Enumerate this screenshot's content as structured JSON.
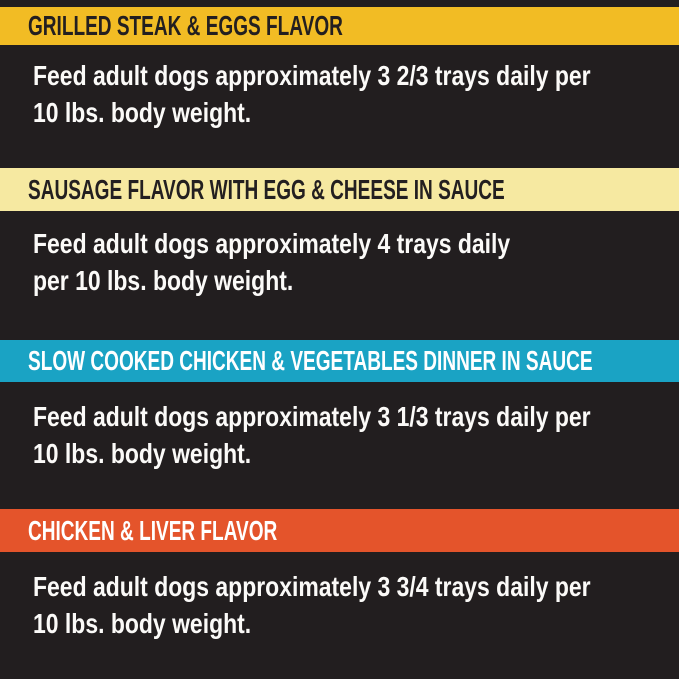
{
  "poster": {
    "background": "#221e1f",
    "body_text_color": "#fbfaf8"
  },
  "sections": [
    {
      "header": "GRILLED STEAK & EGGS FLAVOR",
      "header_bg": "#f2bc24",
      "header_text_color": "#231f20",
      "body_line1": "Feed adult dogs approximately 3 2/3 trays daily per",
      "body_line2": "10 lbs. body weight."
    },
    {
      "header": "SAUSAGE FLAVOR WITH EGG & CHEESE IN SAUCE",
      "header_bg": "#f6e9a1",
      "header_text_color": "#231f20",
      "body_line1": "Feed adult dogs approximately 4 trays daily",
      "body_line2": "per 10 lbs. body weight."
    },
    {
      "header": "SLOW COOKED CHICKEN & VEGETABLES DINNER IN SAUCE",
      "header_bg": "#1aa3c4",
      "header_text_color": "#ffffff",
      "body_line1": "Feed adult dogs approximately 3 1/3 trays daily per",
      "body_line2": "10 lbs. body weight."
    },
    {
      "header": "CHICKEN & LIVER FLAVOR",
      "header_bg": "#e4542b",
      "header_text_color": "#ffffff",
      "body_line1": "Feed adult dogs approximately 3 3/4 trays daily per",
      "body_line2": "10 lbs. body weight."
    }
  ]
}
